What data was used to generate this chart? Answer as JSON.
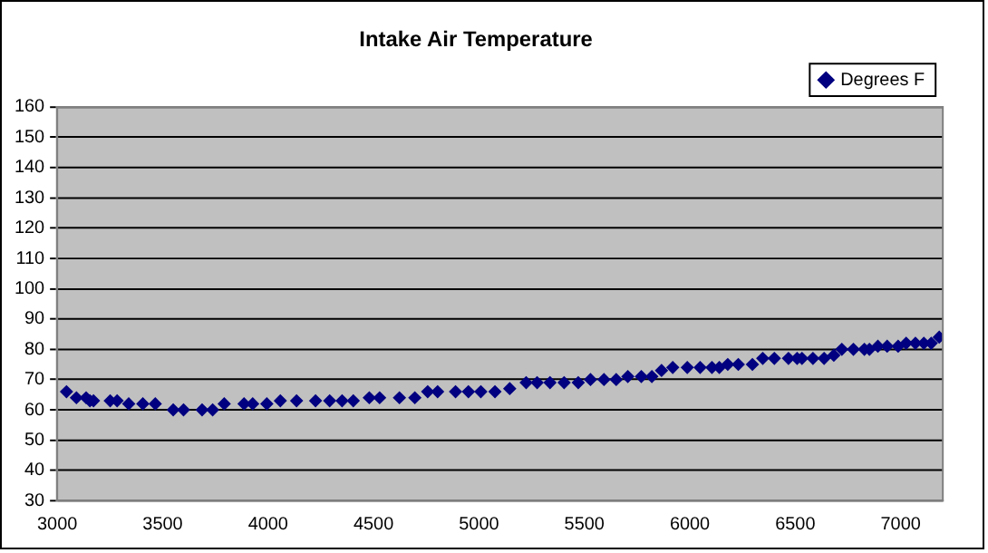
{
  "chart_data": {
    "type": "scatter",
    "title": "Intake Air Temperature",
    "legend": "top right",
    "grid": "y",
    "marker": "diamond",
    "xlim": [
      3000,
      7200
    ],
    "xticks": [
      3000,
      3500,
      4000,
      4500,
      5000,
      5500,
      6000,
      6500,
      7000
    ],
    "ylim": [
      30,
      160
    ],
    "yticks": [
      30,
      40,
      50,
      60,
      70,
      80,
      90,
      100,
      110,
      120,
      130,
      140,
      150,
      160
    ],
    "series": [
      {
        "name": "Degrees F",
        "color": "#000080",
        "x": [
          3044,
          3091,
          3137,
          3155,
          3172,
          3251,
          3284,
          3339,
          3406,
          3465,
          3550,
          3599,
          3687,
          3737,
          3792,
          3886,
          3927,
          3994,
          4058,
          4135,
          4225,
          4292,
          4351,
          4404,
          4480,
          4529,
          4623,
          4696,
          4757,
          4804,
          4889,
          4950,
          5009,
          5076,
          5146,
          5224,
          5276,
          5337,
          5404,
          5471,
          5529,
          5593,
          5651,
          5706,
          5770,
          5820,
          5866,
          5919,
          5988,
          6049,
          6105,
          6140,
          6180,
          6230,
          6297,
          6346,
          6401,
          6468,
          6509,
          6532,
          6584,
          6637,
          6683,
          6721,
          6776,
          6828,
          6852,
          6892,
          6936,
          6988,
          7026,
          7070,
          7110,
          7145,
          7183
        ],
        "values": [
          66,
          64,
          64,
          63,
          63,
          63,
          63,
          62,
          62,
          62,
          60,
          60,
          60,
          60,
          62,
          62,
          62,
          62,
          63,
          63,
          63,
          63,
          63,
          63,
          64,
          64,
          64,
          64,
          66,
          66,
          66,
          66,
          66,
          66,
          67,
          69,
          69,
          69,
          69,
          69,
          70,
          70,
          70,
          71,
          71,
          71,
          73,
          74,
          74,
          74,
          74,
          74,
          75,
          75,
          75,
          77,
          77,
          77,
          77,
          77,
          77,
          77,
          78,
          80,
          80,
          80,
          80,
          81,
          81,
          81,
          82,
          82,
          82,
          82,
          84
        ]
      }
    ]
  }
}
